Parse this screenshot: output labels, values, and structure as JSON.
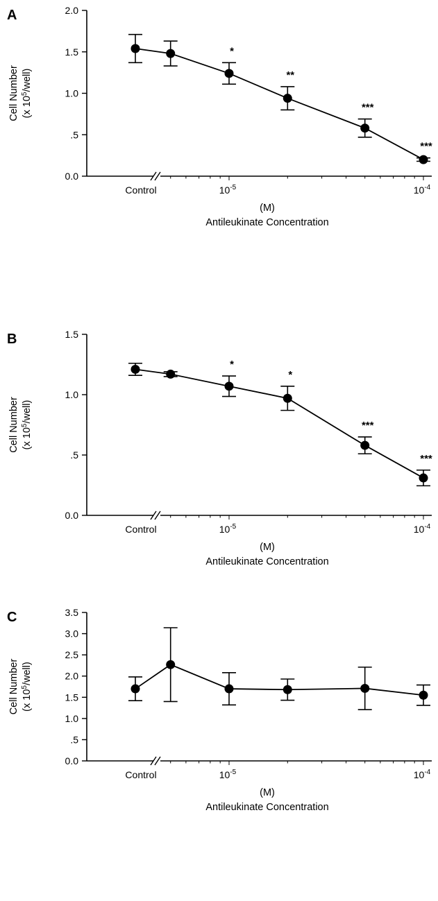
{
  "chart_data": [
    {
      "type": "line",
      "panel_label": "A",
      "ylabel": [
        "Cell Number",
        "(x 10",
        "5",
        "/well)"
      ],
      "xlabel": [
        "(M)",
        "Antileukinate Concentration"
      ],
      "y_ticks": [
        "0.0",
        ".5",
        "1.0",
        "1.5",
        "2.0"
      ],
      "ylim": [
        0,
        2.0
      ],
      "x_scale": "log",
      "x_tick_labels": [
        {
          "base": "Control",
          "exp": ""
        },
        {
          "base": "10",
          "exp": "-5"
        },
        {
          "base": "10",
          "exp": "-4"
        }
      ],
      "axis_break": true,
      "control": {
        "y": 1.54,
        "err": 0.17
      },
      "points": [
        {
          "x": 5e-06,
          "y": 1.48,
          "err": 0.15,
          "sig": ""
        },
        {
          "x": 1e-05,
          "y": 1.24,
          "err": 0.13,
          "sig": "*"
        },
        {
          "x": 2e-05,
          "y": 0.94,
          "err": 0.14,
          "sig": "**"
        },
        {
          "x": 5e-05,
          "y": 0.58,
          "err": 0.11,
          "sig": "***"
        },
        {
          "x": 0.0001,
          "y": 0.2,
          "err": 0.02,
          "sig": "***"
        }
      ]
    },
    {
      "type": "line",
      "panel_label": "B",
      "ylabel": [
        "Cell Number",
        "(x 10",
        "5",
        "/well)"
      ],
      "xlabel": [
        "(M)",
        "Antileukinate Concentration"
      ],
      "y_ticks": [
        "0.0",
        ".5",
        "1.0",
        "1.5"
      ],
      "ylim": [
        0,
        1.5
      ],
      "x_scale": "log",
      "x_tick_labels": [
        {
          "base": "Control",
          "exp": ""
        },
        {
          "base": "10",
          "exp": "-5"
        },
        {
          "base": "10",
          "exp": "-4"
        }
      ],
      "axis_break": true,
      "control": {
        "y": 1.21,
        "err": 0.05
      },
      "points": [
        {
          "x": 5e-06,
          "y": 1.17,
          "err": 0.02,
          "sig": ""
        },
        {
          "x": 1e-05,
          "y": 1.07,
          "err": 0.085,
          "sig": "*"
        },
        {
          "x": 2e-05,
          "y": 0.97,
          "err": 0.1,
          "sig": "*"
        },
        {
          "x": 5e-05,
          "y": 0.58,
          "err": 0.07,
          "sig": "***"
        },
        {
          "x": 0.0001,
          "y": 0.31,
          "err": 0.065,
          "sig": "***"
        }
      ]
    },
    {
      "type": "line",
      "panel_label": "C",
      "ylabel": [
        "Cell Number",
        "(x 10",
        "5",
        "/well)"
      ],
      "xlabel": [
        "(M)",
        "Antileukinate Concentration"
      ],
      "y_ticks": [
        "0.0",
        ".5",
        "1.0",
        "1.5",
        "2.0",
        "2.5",
        "3.0",
        "3.5"
      ],
      "ylim": [
        0,
        3.5
      ],
      "x_scale": "log",
      "x_tick_labels": [
        {
          "base": "Control",
          "exp": ""
        },
        {
          "base": "10",
          "exp": "-5"
        },
        {
          "base": "10",
          "exp": "-4"
        }
      ],
      "axis_break": true,
      "control": {
        "y": 1.7,
        "err": 0.28
      },
      "points": [
        {
          "x": 5e-06,
          "y": 2.27,
          "err": 0.87,
          "sig": ""
        },
        {
          "x": 1e-05,
          "y": 1.7,
          "err": 0.38,
          "sig": ""
        },
        {
          "x": 2e-05,
          "y": 1.68,
          "err": 0.25,
          "sig": ""
        },
        {
          "x": 5e-05,
          "y": 1.71,
          "err": 0.5,
          "sig": ""
        },
        {
          "x": 0.0001,
          "y": 1.55,
          "err": 0.24,
          "sig": ""
        }
      ]
    }
  ]
}
